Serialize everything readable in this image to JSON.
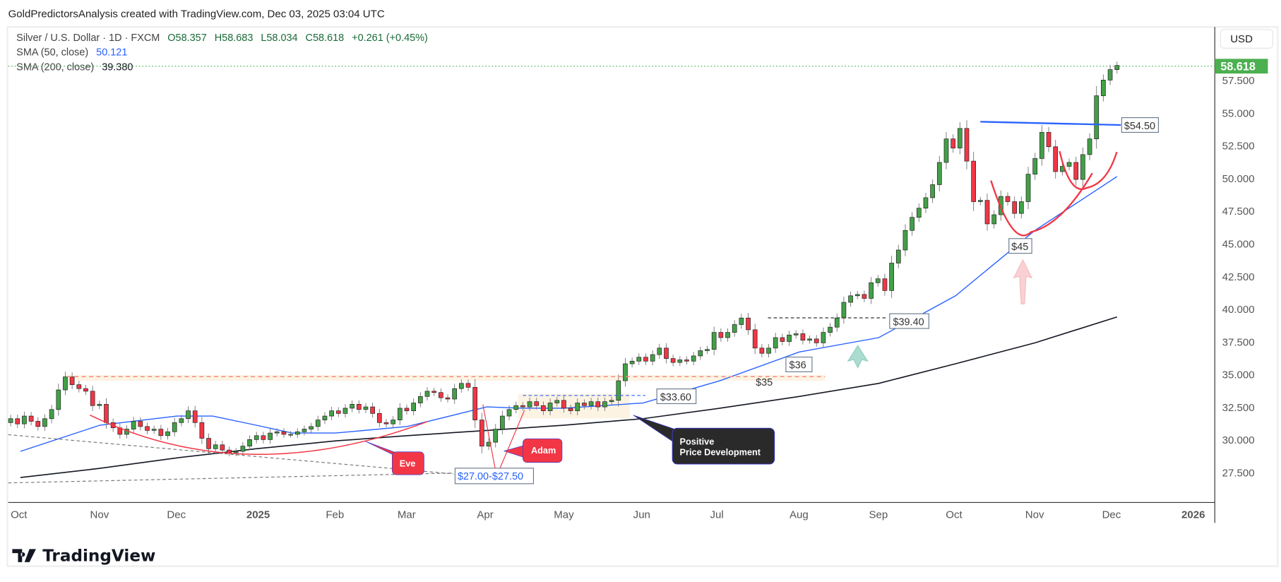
{
  "watermark": "GoldPredictorsAnalysis created with TradingView.com, Dec 03, 2025 03:04 UTC",
  "legend": {
    "symbol": "Silver / U.S. Dollar · 1D · FXCM",
    "open": "O58.357",
    "high": "H58.683",
    "low": "L58.034",
    "close": "C58.618",
    "change": "+0.261 (+0.45%)",
    "sma50_label": "SMA (50, close)",
    "sma50_value": "50.121",
    "sma200_label": "SMA (200, close)",
    "sma200_value": "39.380"
  },
  "currency_button": "USD",
  "last_price_label": "58.618",
  "brand": "TradingView",
  "colors": {
    "up": "#43a047",
    "down": "#f23645",
    "sma50": "#2962ff",
    "sma200": "#131722",
    "last_price": "#4caf50",
    "annotation_red": "#f23645",
    "annotation_dark": "#2a2a2a"
  },
  "chart_data": {
    "type": "candlestick",
    "symbol": "Silver / U.S. Dollar",
    "interval": "1D",
    "start_date": "2024-10-01",
    "end_date": "2025-12-03",
    "ylim": [
      25.5,
      59.5
    ],
    "y_ticks": [
      "57.500",
      "55.000",
      "52.500",
      "50.000",
      "47.500",
      "45.000",
      "42.500",
      "40.000",
      "37.500",
      "35.000",
      "32.500",
      "30.000",
      "27.500"
    ],
    "y_tick_values": [
      57.5,
      55,
      52.5,
      50,
      47.5,
      45,
      42.5,
      40,
      37.5,
      35,
      32.5,
      30,
      27.5
    ],
    "x_ticks": [
      {
        "label": "Oct",
        "date": "2024-10-01"
      },
      {
        "label": "Nov",
        "date": "2024-11-01"
      },
      {
        "label": "Dec",
        "date": "2024-12-01"
      },
      {
        "label": "2025",
        "date": "2025-01-01"
      },
      {
        "label": "Feb",
        "date": "2025-02-01"
      },
      {
        "label": "Mar",
        "date": "2025-03-01"
      },
      {
        "label": "Apr",
        "date": "2025-04-01"
      },
      {
        "label": "May",
        "date": "2025-05-01"
      },
      {
        "label": "Jun",
        "date": "2025-06-01"
      },
      {
        "label": "Jul",
        "date": "2025-07-01"
      },
      {
        "label": "Aug",
        "date": "2025-08-01"
      },
      {
        "label": "Sep",
        "date": "2025-09-01"
      },
      {
        "label": "Oct",
        "date": "2025-10-01"
      },
      {
        "label": "Nov",
        "date": "2025-11-01"
      },
      {
        "label": "Dec",
        "date": "2025-12-01"
      },
      {
        "label": "2026",
        "date": "2026-01-01"
      }
    ],
    "closes": [
      31.6,
      31.2,
      31.8,
      31.4,
      31.0,
      31.6,
      32.3,
      33.8,
      34.8,
      34.2,
      33.9,
      33.7,
      32.6,
      32.7,
      31.3,
      30.9,
      30.4,
      30.8,
      31.4,
      31.0,
      30.7,
      30.8,
      30.3,
      30.6,
      31.3,
      31.6,
      32.2,
      31.3,
      30.1,
      29.3,
      29.6,
      29.2,
      29.0,
      29.1,
      29.5,
      30.0,
      30.3,
      30.0,
      30.5,
      30.6,
      30.4,
      30.4,
      30.6,
      30.8,
      31.0,
      31.5,
      31.8,
      32.2,
      32.0,
      32.4,
      32.7,
      32.3,
      32.5,
      32.0,
      31.3,
      31.2,
      31.5,
      32.4,
      32.2,
      32.8,
      33.3,
      33.7,
      33.6,
      33.2,
      33.1,
      33.9,
      34.3,
      34.0,
      31.5,
      29.5,
      29.8,
      30.8,
      31.8,
      32.3,
      32.6,
      32.5,
      32.9,
      32.6,
      32.2,
      32.8,
      33.0,
      32.4,
      32.2,
      32.8,
      32.6,
      32.9,
      32.5,
      32.9,
      33.0,
      34.5,
      35.8,
      36.0,
      36.3,
      36.0,
      36.5,
      37.0,
      36.2,
      35.9,
      36.1,
      36.0,
      36.4,
      36.8,
      36.9,
      38.2,
      37.8,
      38.2,
      38.8,
      39.3,
      38.4,
      37.0,
      36.6,
      37.0,
      37.8,
      37.5,
      38.0,
      38.1,
      37.6,
      37.7,
      37.4,
      38.2,
      38.6,
      39.3,
      40.5,
      41.0,
      41.1,
      40.8,
      42.0,
      42.3,
      41.4,
      43.5,
      44.5,
      46.0,
      47.0,
      47.7,
      48.5,
      49.5,
      51.2,
      53.0,
      52.3,
      53.8,
      51.3,
      48.2,
      48.3,
      46.5,
      47.2,
      48.6,
      48.2,
      47.3,
      48.2,
      50.3,
      51.5,
      53.5,
      52.4,
      50.5,
      50.9,
      51.2,
      49.9,
      51.8,
      53.0,
      56.3,
      57.5,
      58.3,
      58.618
    ],
    "series": [
      {
        "name": "SMA (50, close)",
        "points": [
          [
            "2024-10-01",
            29.1
          ],
          [
            "2024-11-01",
            31.1
          ],
          [
            "2024-12-01",
            31.8
          ],
          [
            "2024-12-15",
            31.8
          ],
          [
            "2025-01-01",
            31.1
          ],
          [
            "2025-01-15",
            30.5
          ],
          [
            "2025-02-01",
            30.5
          ],
          [
            "2025-03-01",
            31.0
          ],
          [
            "2025-04-01",
            32.5
          ],
          [
            "2025-04-15",
            32.4
          ],
          [
            "2025-05-01",
            32.4
          ],
          [
            "2025-06-01",
            32.8
          ],
          [
            "2025-07-01",
            34.5
          ],
          [
            "2025-08-01",
            36.7
          ],
          [
            "2025-09-01",
            37.8
          ],
          [
            "2025-10-01",
            41.0
          ],
          [
            "2025-11-01",
            46.0
          ],
          [
            "2025-12-03",
            50.121
          ]
        ]
      },
      {
        "name": "SMA (200, close)",
        "points": [
          [
            "2024-10-01",
            27.1
          ],
          [
            "2024-11-01",
            27.8
          ],
          [
            "2024-12-01",
            28.6
          ],
          [
            "2025-01-01",
            29.3
          ],
          [
            "2025-02-01",
            29.9
          ],
          [
            "2025-03-01",
            30.3
          ],
          [
            "2025-04-01",
            30.7
          ],
          [
            "2025-05-01",
            31.1
          ],
          [
            "2025-06-01",
            31.6
          ],
          [
            "2025-07-01",
            32.4
          ],
          [
            "2025-08-01",
            33.3
          ],
          [
            "2025-09-01",
            34.3
          ],
          [
            "2025-10-01",
            35.8
          ],
          [
            "2025-11-01",
            37.4
          ],
          [
            "2025-12-03",
            39.38
          ]
        ]
      }
    ],
    "annotations": {
      "eve": "Eve",
      "adam": "Adam",
      "support_range": "$27.00-$27.50",
      "positive": [
        "Positive",
        "Price Development"
      ],
      "level_33_60": "$33.60",
      "level_35": "$35",
      "level_36": "$36",
      "level_39_40": "$39.40",
      "level_45": "$45",
      "level_54_50": "$54.50"
    }
  }
}
